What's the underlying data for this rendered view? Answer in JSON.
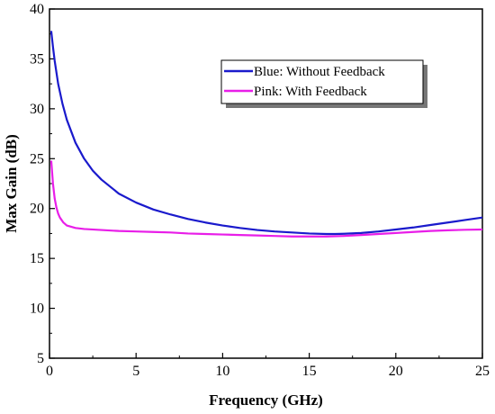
{
  "chart_data": {
    "type": "line",
    "xlabel": "Frequency (GHz)",
    "ylabel": "Max Gain (dB)",
    "xlim": [
      0,
      25
    ],
    "ylim": [
      5,
      40
    ],
    "xticks": [
      0,
      5,
      10,
      15,
      20,
      25
    ],
    "yticks": [
      5,
      10,
      15,
      20,
      25,
      30,
      35,
      40
    ],
    "grid": false,
    "legend_position": "top-right",
    "series": [
      {
        "name": "Blue: Without Feedback",
        "color": "#1a1acc",
        "x": [
          0.1,
          0.2,
          0.3,
          0.5,
          0.75,
          1,
          1.5,
          2,
          2.5,
          3,
          4,
          5,
          6,
          7,
          8,
          9,
          10,
          11,
          12,
          13,
          14,
          15,
          16,
          16.5,
          17,
          18,
          19,
          20,
          21,
          22,
          23,
          24,
          25
        ],
        "y": [
          37.8,
          36.2,
          34.8,
          32.5,
          30.5,
          28.9,
          26.6,
          25.0,
          23.8,
          22.9,
          21.5,
          20.6,
          19.9,
          19.4,
          18.95,
          18.6,
          18.3,
          18.05,
          17.85,
          17.7,
          17.6,
          17.5,
          17.45,
          17.45,
          17.47,
          17.55,
          17.7,
          17.9,
          18.1,
          18.35,
          18.6,
          18.85,
          19.1
        ]
      },
      {
        "name": "Pink: With Feedback",
        "color": "#e81ee8",
        "x": [
          0.1,
          0.2,
          0.3,
          0.4,
          0.5,
          0.6,
          0.8,
          1,
          1.5,
          2,
          3,
          4,
          5,
          6,
          7,
          8,
          9,
          10,
          11,
          12,
          13,
          14,
          15,
          16,
          17,
          18,
          19,
          20,
          21,
          22,
          23,
          24,
          25
        ],
        "y": [
          24.8,
          22.5,
          21.0,
          20.1,
          19.5,
          19.1,
          18.6,
          18.3,
          18.05,
          17.95,
          17.85,
          17.75,
          17.7,
          17.65,
          17.6,
          17.5,
          17.45,
          17.4,
          17.35,
          17.3,
          17.25,
          17.2,
          17.2,
          17.2,
          17.25,
          17.35,
          17.45,
          17.55,
          17.65,
          17.75,
          17.82,
          17.87,
          17.9
        ]
      }
    ]
  }
}
